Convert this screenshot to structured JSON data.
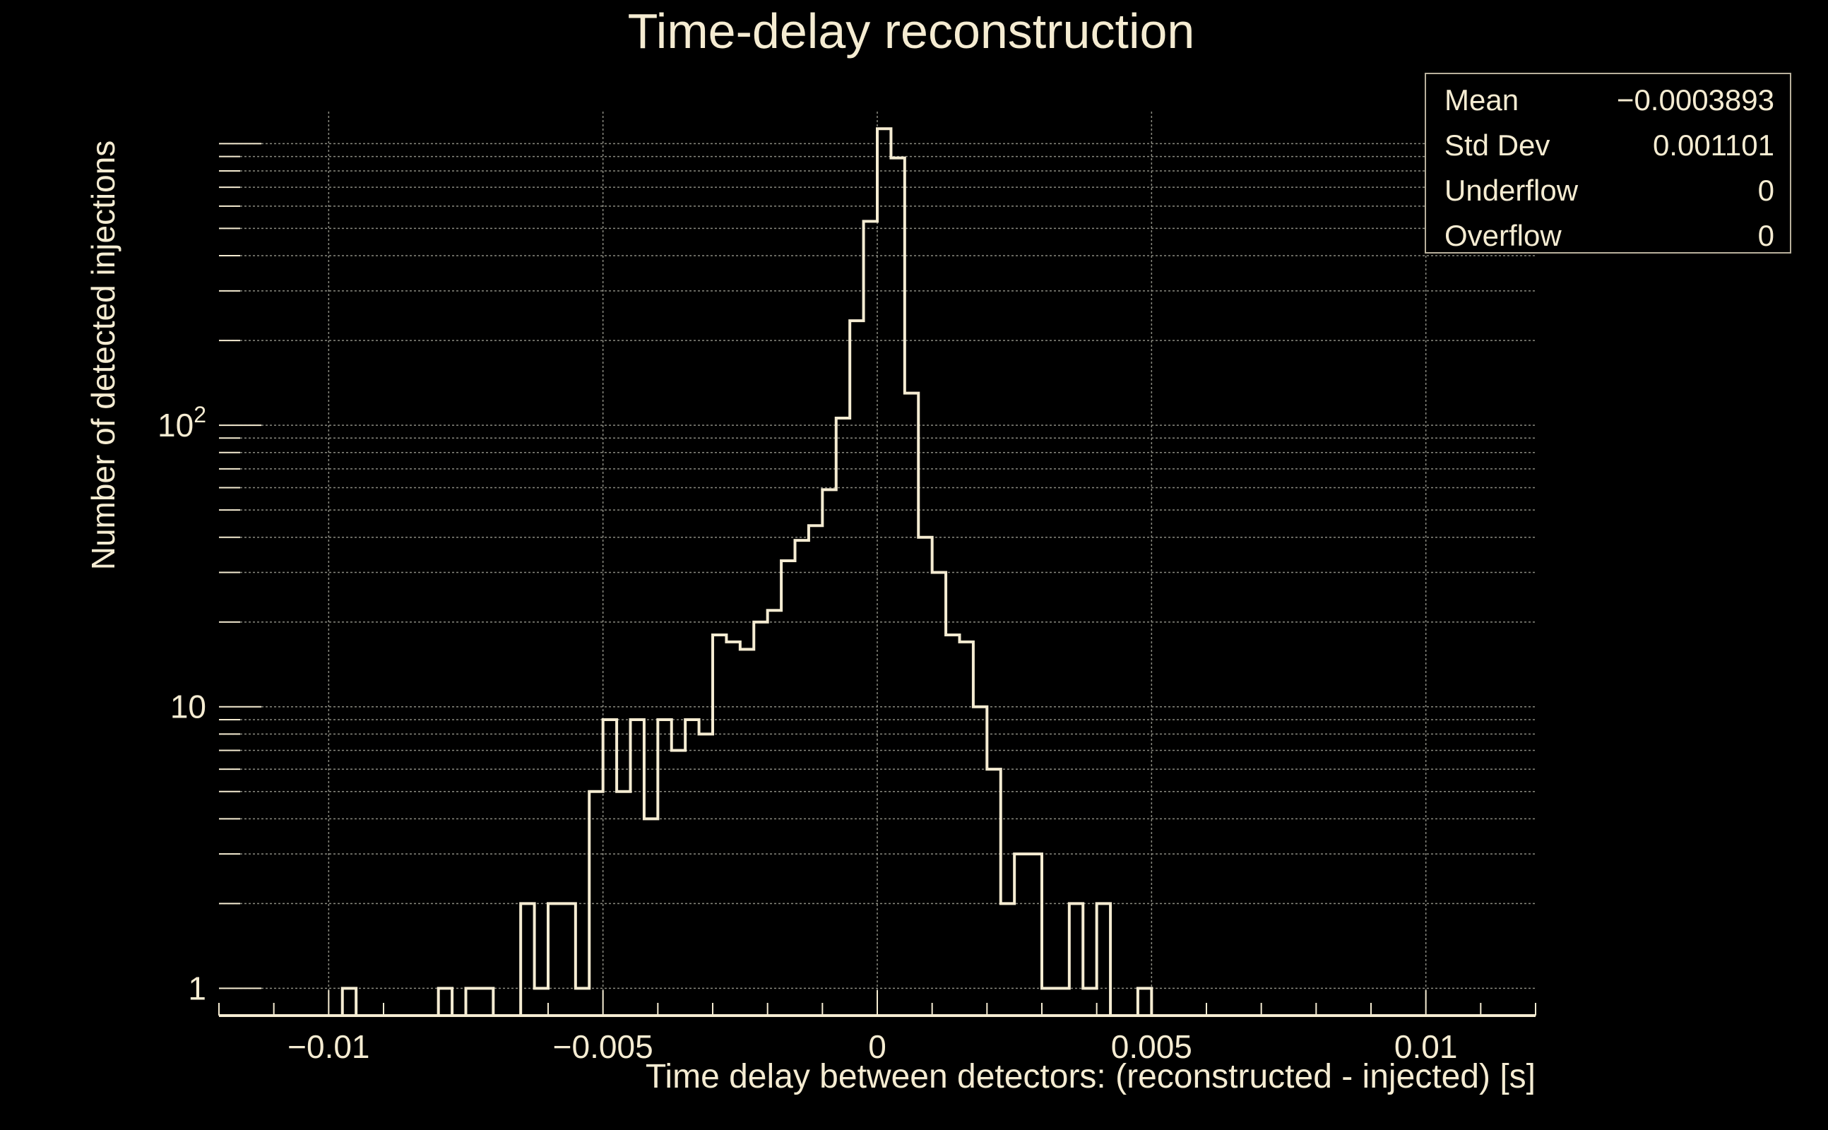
{
  "chart_data": {
    "type": "histogram",
    "title": "Time-delay reconstruction",
    "xlabel": "Time delay between detectors: (reconstructed - injected) [s]",
    "ylabel": "Number of detected injections",
    "log_y": true,
    "xlim": [
      -0.012,
      0.012
    ],
    "ylim": [
      0.8,
      1300
    ],
    "x_ticks": [
      -0.01,
      -0.005,
      0,
      0.005,
      0.01
    ],
    "x_tick_labels": [
      "−0.01",
      "−0.005",
      "0",
      "0.005",
      "0.01"
    ],
    "y_ticks": [
      1,
      10,
      100
    ],
    "y_tick_labels": [
      "1",
      "10",
      "10²"
    ],
    "grid": true,
    "bin_width": 0.00025,
    "bins": [
      {
        "x": -0.00975,
        "y": 1
      },
      {
        "x": -0.008,
        "y": 1
      },
      {
        "x": -0.0075,
        "y": 1
      },
      {
        "x": -0.00725,
        "y": 1
      },
      {
        "x": -0.0065,
        "y": 2
      },
      {
        "x": -0.00625,
        "y": 1
      },
      {
        "x": -0.006,
        "y": 2
      },
      {
        "x": -0.00575,
        "y": 2
      },
      {
        "x": -0.0055,
        "y": 1
      },
      {
        "x": -0.00525,
        "y": 5
      },
      {
        "x": -0.005,
        "y": 9
      },
      {
        "x": -0.00475,
        "y": 5
      },
      {
        "x": -0.0045,
        "y": 9
      },
      {
        "x": -0.00425,
        "y": 4
      },
      {
        "x": -0.004,
        "y": 9
      },
      {
        "x": -0.00375,
        "y": 7
      },
      {
        "x": -0.0035,
        "y": 9
      },
      {
        "x": -0.00325,
        "y": 8
      },
      {
        "x": -0.003,
        "y": 18
      },
      {
        "x": -0.00275,
        "y": 17
      },
      {
        "x": -0.0025,
        "y": 16
      },
      {
        "x": -0.00225,
        "y": 20
      },
      {
        "x": -0.002,
        "y": 22
      },
      {
        "x": -0.00175,
        "y": 33
      },
      {
        "x": -0.0015,
        "y": 39
      },
      {
        "x": -0.00125,
        "y": 44
      },
      {
        "x": -0.001,
        "y": 59
      },
      {
        "x": -0.00075,
        "y": 106
      },
      {
        "x": -0.0005,
        "y": 235
      },
      {
        "x": -0.00025,
        "y": 530
      },
      {
        "x": 0.0,
        "y": 1130
      },
      {
        "x": 0.00025,
        "y": 890
      },
      {
        "x": 0.0005,
        "y": 130
      },
      {
        "x": 0.00075,
        "y": 40
      },
      {
        "x": 0.001,
        "y": 30
      },
      {
        "x": 0.00125,
        "y": 18
      },
      {
        "x": 0.0015,
        "y": 17
      },
      {
        "x": 0.00175,
        "y": 10
      },
      {
        "x": 0.002,
        "y": 6
      },
      {
        "x": 0.00225,
        "y": 2
      },
      {
        "x": 0.0025,
        "y": 3
      },
      {
        "x": 0.00275,
        "y": 3
      },
      {
        "x": 0.003,
        "y": 1
      },
      {
        "x": 0.00325,
        "y": 1
      },
      {
        "x": 0.0035,
        "y": 2
      },
      {
        "x": 0.00375,
        "y": 1
      },
      {
        "x": 0.004,
        "y": 2
      },
      {
        "x": 0.00475,
        "y": 1
      }
    ],
    "stats_box": [
      {
        "label": "Mean",
        "value": "−0.0003893"
      },
      {
        "label": "Std Dev",
        "value": "0.001101"
      },
      {
        "label": "Underflow",
        "value": "0"
      },
      {
        "label": "Overflow",
        "value": "0"
      }
    ],
    "colors": {
      "background": "#000000",
      "line": "#f5ecd2",
      "grid": "#8a8a80",
      "axis": "#f5ecd2"
    }
  }
}
